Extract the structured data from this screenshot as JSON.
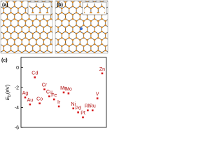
{
  "panel_labels": [
    "(a)",
    "(b)"
  ],
  "chart_data": {
    "type": "scatter",
    "panel_label": "(c)",
    "ylabel": [
      "E",
      "b",
      "(eV)"
    ],
    "categories": [
      "Ag",
      "Au",
      "Cd",
      "Co",
      "Cr",
      "Cu",
      "Fe",
      "Ir",
      "Mn",
      "Mo",
      "Ni",
      "Pd",
      "Pt",
      "Rh",
      "Ru",
      "V",
      "Zn"
    ],
    "values": [
      -3.0,
      -3.7,
      -1.0,
      -3.6,
      -2.2,
      -2.9,
      -3.2,
      -3.9,
      -2.5,
      -2.6,
      -4.1,
      -4.5,
      -5.0,
      -4.3,
      -4.3,
      -3.1,
      -0.6
    ],
    "color": "#d7191c",
    "ylim": [
      -6,
      1
    ],
    "yticks": [
      0,
      -2,
      -4,
      -6
    ]
  }
}
